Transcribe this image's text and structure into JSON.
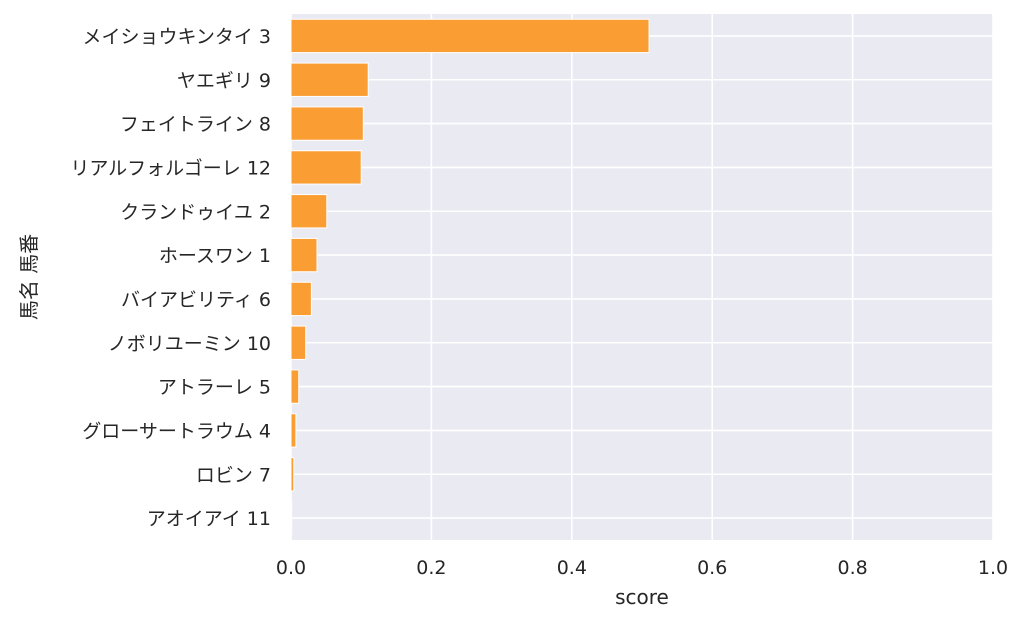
{
  "chart_data": {
    "type": "bar",
    "orientation": "horizontal",
    "categories": [
      "メイショウキンタイ 3",
      "ヤエギリ 9",
      "フェイトライン 8",
      "リアルフォルゴーレ 12",
      "クランドゥイユ 2",
      "ホースワン 1",
      "バイアビリティ 6",
      "ノボリユーミン 10",
      "アトラーレ 5",
      "グローサートラウム 4",
      "ロビン 7",
      "アオイアイ 11"
    ],
    "values": [
      0.51,
      0.11,
      0.103,
      0.1,
      0.051,
      0.037,
      0.029,
      0.021,
      0.011,
      0.007,
      0.004,
      0.001
    ],
    "title": "",
    "xlabel": "score",
    "ylabel": "馬名 馬番",
    "xlim": [
      0.0,
      1.0
    ],
    "xticks": [
      "0.0",
      "0.2",
      "0.4",
      "0.6",
      "0.8",
      "1.0"
    ],
    "grid": true,
    "legend": "none",
    "colors": {
      "bar": "#fa9d33",
      "bar_edge": "#ffffff",
      "plot_background": "#eaeaf2",
      "grid": "#ffffff"
    }
  }
}
